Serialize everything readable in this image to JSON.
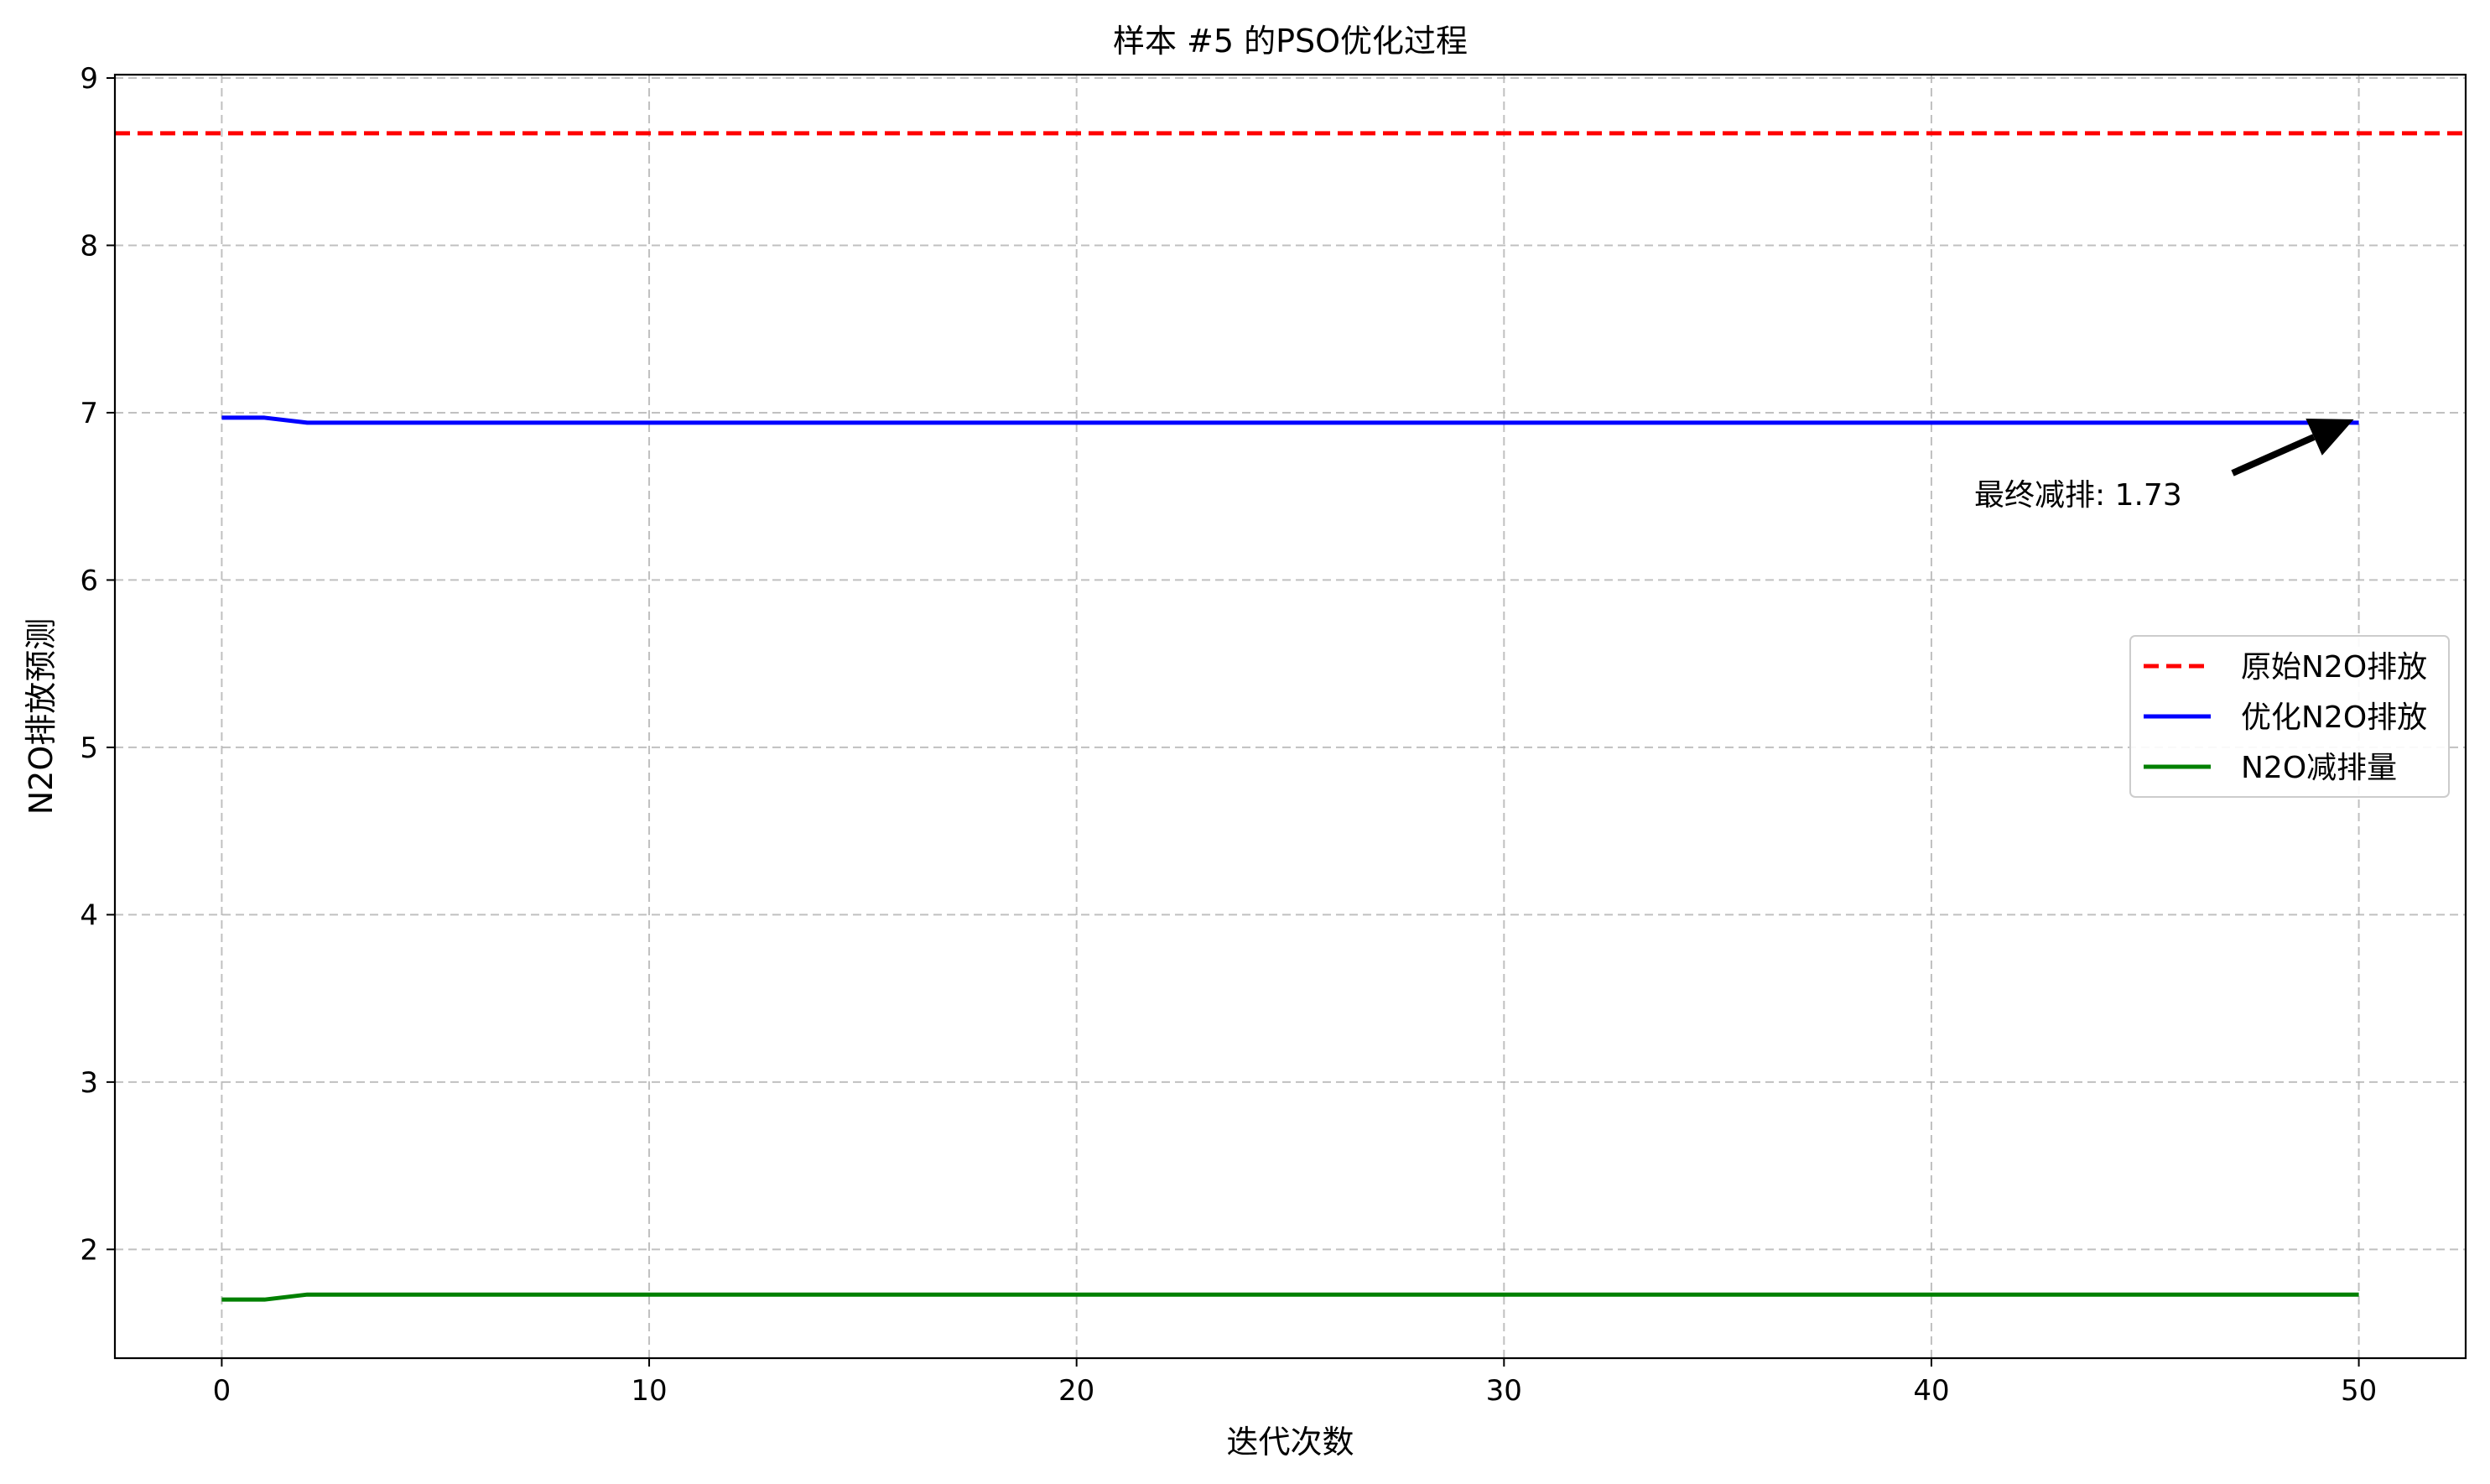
{
  "chart_data": {
    "type": "line",
    "title": "样本 #5 的PSO优化过程",
    "xlabel": "迭代次数",
    "ylabel": "N2O排放预测",
    "xlim": [
      -2.5,
      52.5
    ],
    "ylim": [
      1.35,
      9.02
    ],
    "xticks": [
      0,
      10,
      20,
      30,
      40,
      50
    ],
    "yticks": [
      2,
      3,
      4,
      5,
      6,
      7,
      8,
      9
    ],
    "grid": true,
    "legend_position": "center-right",
    "series": [
      {
        "name": "原始N2O排放",
        "style": "dashed",
        "color": "#ff0000",
        "kind": "hline",
        "y": 8.67
      },
      {
        "name": "优化N2O排放",
        "style": "solid",
        "color": "#0000ff",
        "x": [
          0,
          1,
          2,
          3,
          4,
          5,
          6,
          7,
          8,
          9,
          10,
          15,
          20,
          25,
          30,
          35,
          40,
          45,
          50
        ],
        "y": [
          6.97,
          6.97,
          6.94,
          6.94,
          6.94,
          6.94,
          6.94,
          6.94,
          6.94,
          6.94,
          6.94,
          6.94,
          6.94,
          6.94,
          6.94,
          6.94,
          6.94,
          6.94,
          6.94
        ]
      },
      {
        "name": "N2O减排量",
        "style": "solid",
        "color": "#008000",
        "x": [
          0,
          1,
          2,
          3,
          4,
          5,
          6,
          7,
          8,
          9,
          10,
          15,
          20,
          25,
          30,
          35,
          40,
          45,
          50
        ],
        "y": [
          1.7,
          1.7,
          1.73,
          1.73,
          1.73,
          1.73,
          1.73,
          1.73,
          1.73,
          1.73,
          1.73,
          1.73,
          1.73,
          1.73,
          1.73,
          1.73,
          1.73,
          1.73,
          1.73
        ]
      }
    ],
    "annotation": {
      "text": "最终减排: 1.73",
      "point": [
        50,
        6.94
      ],
      "text_at": [
        41,
        6.45
      ]
    }
  }
}
